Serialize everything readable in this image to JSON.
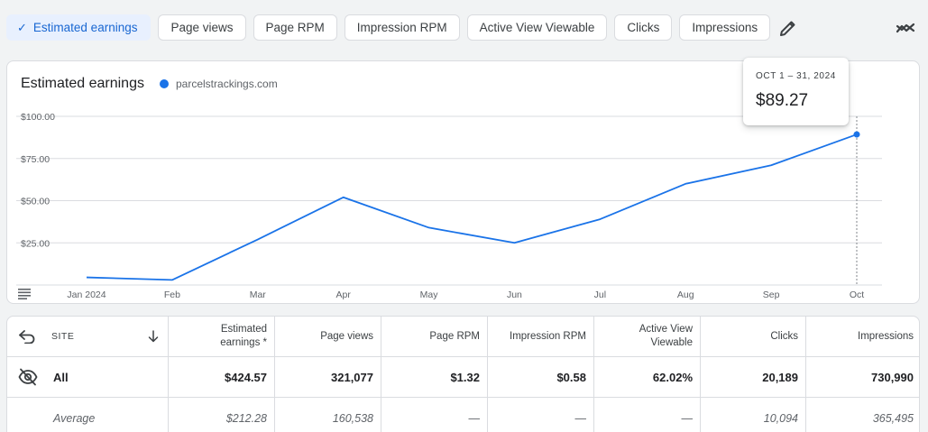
{
  "metrics": {
    "chips": [
      {
        "label": "Estimated earnings",
        "active": true
      },
      {
        "label": "Page views",
        "active": false
      },
      {
        "label": "Page RPM",
        "active": false
      },
      {
        "label": "Impression RPM",
        "active": false
      },
      {
        "label": "Active View Viewable",
        "active": false
      },
      {
        "label": "Clicks",
        "active": false
      },
      {
        "label": "Impressions",
        "active": false
      }
    ],
    "check_icon": "✓",
    "edit_icon": "pencil-icon",
    "compare_icon": "trend-compare-icon"
  },
  "chart": {
    "title": "Estimated earnings",
    "legend_label": "parcelstrackings.com",
    "tooltip": {
      "date": "OCT 1 – 31, 2024",
      "value": "$89.27"
    }
  },
  "chart_data": {
    "type": "line",
    "title": "Estimated earnings",
    "x": [
      "Jan 2024",
      "Feb",
      "Mar",
      "Apr",
      "May",
      "Jun",
      "Jul",
      "Aug",
      "Sep",
      "Oct"
    ],
    "series": [
      {
        "name": "parcelstrackings.com",
        "values": [
          4.5,
          3.0,
          27.0,
          52.0,
          34.0,
          25.0,
          39.0,
          60.0,
          71.0,
          89.27
        ],
        "color": "#1a73e8"
      }
    ],
    "yticks": [
      "$100.00",
      "$75.00",
      "$50.00",
      "$25.00"
    ],
    "ylim": [
      0,
      100
    ],
    "grid": true,
    "highlight_index": 9
  },
  "table": {
    "headers": {
      "site": "SITE",
      "columns": [
        "Estimated earnings *",
        "Page views",
        "Page RPM",
        "Impression RPM",
        "Active View Viewable",
        "Clicks",
        "Impressions"
      ]
    },
    "all_row": {
      "label": "All",
      "values": [
        "$424.57",
        "321,077",
        "$1.32",
        "$0.58",
        "62.02%",
        "20,189",
        "730,990"
      ]
    },
    "average_row": {
      "label": "Average",
      "values": [
        "$212.28",
        "160,538",
        "—",
        "—",
        "—",
        "10,094",
        "365,495"
      ]
    }
  }
}
